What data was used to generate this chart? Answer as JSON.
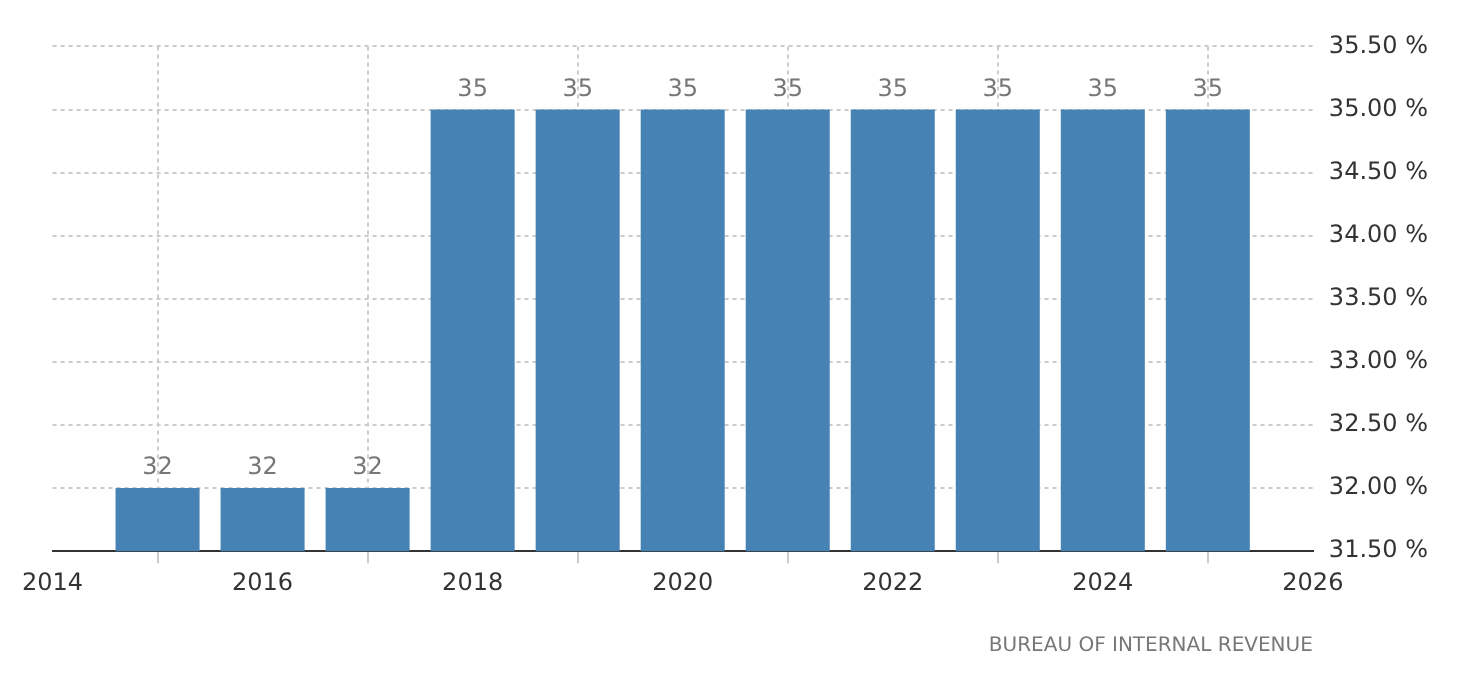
{
  "chart_data": {
    "type": "bar",
    "x": [
      2015,
      2016,
      2017,
      2018,
      2019,
      2020,
      2021,
      2022,
      2023,
      2024,
      2025
    ],
    "values": [
      32,
      32,
      32,
      35,
      35,
      35,
      35,
      35,
      35,
      35,
      35
    ],
    "color": "#4682b4",
    "data_labels": true,
    "xlim": [
      2014,
      2026
    ],
    "xticks": [
      2014,
      2016,
      2018,
      2020,
      2022,
      2024,
      2026
    ],
    "ylim": [
      31.5,
      35.5
    ],
    "yticks": [
      {
        "value": 31.5,
        "label": "31.50 %"
      },
      {
        "value": 32,
        "label": "32.00 %"
      },
      {
        "value": 32.5,
        "label": "32.50 %"
      },
      {
        "value": 33,
        "label": "33.00 %"
      },
      {
        "value": 33.5,
        "label": "33.50 %"
      },
      {
        "value": 34,
        "label": "34.00 %"
      },
      {
        "value": 34.5,
        "label": "34.50 %"
      },
      {
        "value": 35,
        "label": "35.00 %"
      },
      {
        "value": 35.5,
        "label": "35.50 %"
      }
    ],
    "grid": true,
    "legend": false,
    "annotations": [
      "BUREAU OF INTERNAL REVENUE"
    ]
  }
}
